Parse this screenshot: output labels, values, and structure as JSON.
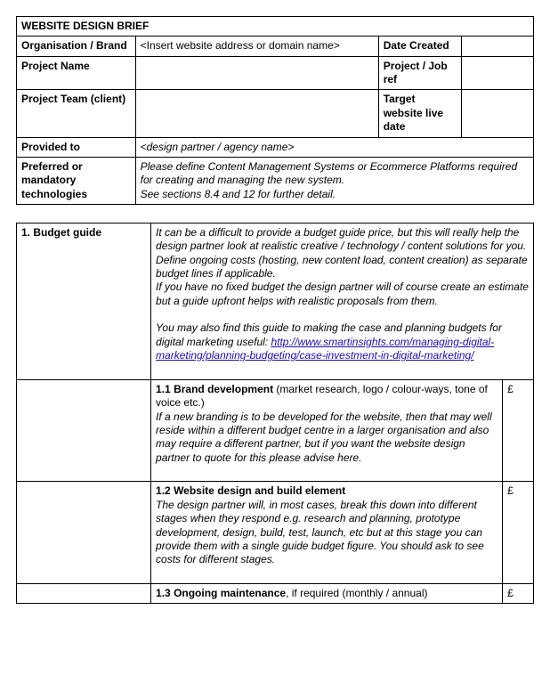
{
  "title": "WEBSITE DESIGN BRIEF",
  "header": {
    "org_label": "Organisation / Brand",
    "org_value": "<Insert website address or domain name>",
    "date_created_label": "Date Created",
    "date_created_value": "",
    "project_name_label": "Project Name",
    "project_name_value": "",
    "project_ref_label": "Project / Job ref",
    "project_ref_value": "",
    "team_label": "Project Team (client)",
    "team_value": "",
    "target_live_label": "Target website live date",
    "target_live_value": "",
    "provided_to_label": "Provided to",
    "provided_to_value": "<design partner / agency name>",
    "tech_label": "Preferred or mandatory technologies",
    "tech_value_line1": "Please define Content Management Systems or Ecommerce Platforms required for creating and managing the new system.",
    "tech_value_line2": "See sections 8.4 and 12 for further detail."
  },
  "budget": {
    "heading": "1. Budget guide",
    "intro_p1": "It can be a difficult to provide a budget guide price, but this will really help the design partner look at realistic creative / technology / content solutions for you.",
    "intro_p2": "Define ongoing costs (hosting, new content load, content creation) as separate budget lines if applicable.",
    "intro_p3": "If you have no fixed budget the design partner will of course create an estimate but a guide upfront helps with realistic proposals from them.",
    "intro_p4_prelink": "You may also find this guide to making the case and planning budgets for digital marketing useful: ",
    "intro_link_text": "http://www.smartinsights.com/managing-digital-marketing/planning-budgeting/case-investment-in-digital-marketing/",
    "intro_link_href": "http://www.smartinsights.com/managing-digital-marketing/planning-budgeting/case-investment-in-digital-marketing/",
    "currency": "£",
    "items": {
      "brand": {
        "title": "1.1 Brand development",
        "title_suffix": " (market research, logo / colour-ways, tone of voice etc.)",
        "body": "If a new branding is to be developed for the website, then that may well reside within a different budget centre in a larger organisation and also may require a different partner, but if you want the website design partner to quote for this please advise here."
      },
      "design": {
        "title": "1.2 Website design and build element",
        "body": "The design partner will, in most cases, break this down into different stages when they respond e.g. research and planning, prototype development, design, build, test, launch, etc but at this stage you can provide them with a single guide budget figure. You should ask to see costs for different stages."
      },
      "maint": {
        "title": "1.3 Ongoing maintenance",
        "title_suffix": ", if required (monthly / annual)"
      }
    }
  }
}
